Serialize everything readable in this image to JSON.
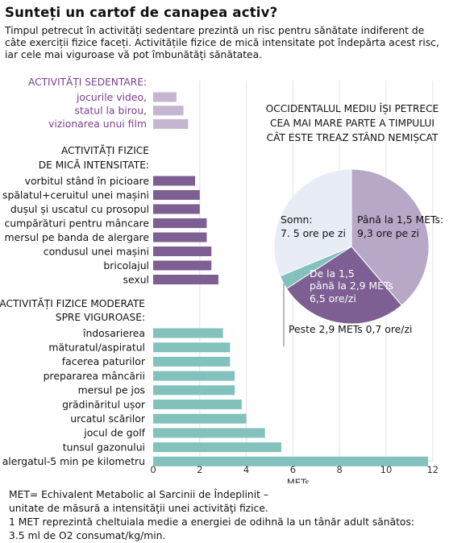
{
  "title": "Sunteți un cartof de canapea activ?",
  "intro": "Timpul petrecut în activități sedentare prezintă un risc pentru sănătate indiferent de câte exerciții fizice faceți. Activitățile fizice de mică intensitate pot îndepărta acest risc, iar cele mai viguroase vă pot îmbunătăți sănătatea.",
  "footer": [
    "MET= Echivalent Metabolic al Sarcinii de Îndeplinit –",
    "unitate de măsură a intensităţii unei activităţi fizice.",
    "1 MET reprezintă cheltuiala medie a energiei de odihnă la un tânăr adult sănătos:",
    "3.5 ml de O2 consumat/kg/min."
  ],
  "colors": {
    "sedentary": "#c5b5d0",
    "light": "#7d5f93",
    "moderate": "#82c1bc",
    "sedentary_text": "#7a3e8c",
    "pie_sleep": "#e8edf5",
    "pie_sedentary": "#b8a8c8",
    "pie_light": "#7d5f93",
    "pie_vigorous": "#82c1bc"
  },
  "chart_data": [
    {
      "type": "bar",
      "orientation": "horizontal",
      "xlabel": "METs",
      "xlim": [
        0,
        12
      ],
      "xticks": [
        0,
        2,
        4,
        6,
        8,
        10,
        12
      ],
      "grid": true,
      "groups": [
        {
          "name": "sedentary",
          "title": [
            "ACTIVITĂȚI SEDENTARE:"
          ],
          "categories": [
            "jocurile video,",
            "statul la birou,",
            "vizionarea unui film"
          ],
          "values": [
            1.0,
            1.3,
            1.5
          ]
        },
        {
          "name": "light",
          "title": [
            "ACTIVITĂȚI FIZICE",
            "DE MICĂ INTENSITATE:"
          ],
          "categories": [
            "vorbitul stând în picioare",
            "spălatul+ceruitul unei mașini",
            "dușul și uscatul cu prosopul",
            "cumpărături pentru mâncare",
            "mersul pe banda de alergare",
            "condusul unei mașini",
            "bricolajul",
            "sexul"
          ],
          "values": [
            1.8,
            2.0,
            2.0,
            2.3,
            2.3,
            2.5,
            2.5,
            2.8
          ]
        },
        {
          "name": "moderate",
          "title": [
            "ACTIVITĂȚI FIZICE MODERATE",
            "SPRE VIGUROASE:"
          ],
          "categories": [
            "îndosarierea",
            "măturatul/aspiratul",
            "facerea paturilor",
            "prepararea mâncării",
            "mersul pe jos",
            "grădinăritul ușor",
            "urcatul scărilor",
            "jocul de golf",
            "tunsul gazonului",
            "alergatul-5 min pe kilometru"
          ],
          "values": [
            3.0,
            3.3,
            3.3,
            3.5,
            3.5,
            3.8,
            4.0,
            4.8,
            5.5,
            11.8
          ]
        }
      ]
    },
    {
      "type": "pie",
      "title": [
        "OCCIDENTALUL MEDIU ÎȘI PETRECE",
        "CEA MAI MARE PARTE A TIMPULUI",
        "CÂT ESTE TREAZ STÂND NEMIȘCAT"
      ],
      "slices": [
        {
          "label": [
            "Până la 1,5 METs:",
            "9,3 ore pe zi"
          ],
          "value": 9.3
        },
        {
          "label": [
            "De la 1,5",
            "până la 2,9 METs",
            "6,5 ore/zi"
          ],
          "value": 6.5
        },
        {
          "label": [
            "Peste 2,9 METs 0,7 ore/zi"
          ],
          "value": 0.7
        },
        {
          "label": [
            "Somn:",
            "7. 5 ore pe zi"
          ],
          "value": 7.5
        }
      ]
    }
  ]
}
